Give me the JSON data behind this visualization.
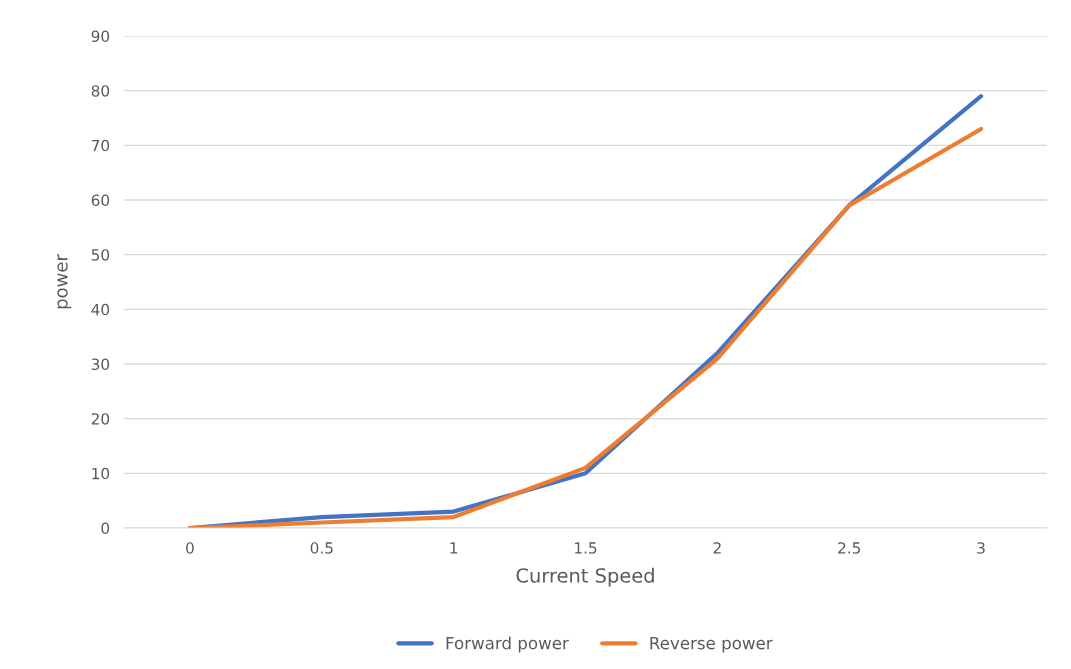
{
  "chart_data": {
    "type": "line",
    "xlabel": "Current Speed",
    "ylabel": "power",
    "categories": [
      "0",
      "0.5",
      "1",
      "1.5",
      "2",
      "2.5",
      "3"
    ],
    "series": [
      {
        "name": "Forward power",
        "color": "#4472c4",
        "values": [
          0,
          2,
          3,
          10,
          32,
          59,
          79
        ]
      },
      {
        "name": "Reverse power",
        "color": "#ed7d31",
        "values": [
          0,
          1,
          2,
          11,
          31,
          59,
          73
        ]
      }
    ],
    "ylim": [
      0,
      90
    ],
    "yticks": [
      0,
      10,
      20,
      30,
      40,
      50,
      60,
      70,
      80,
      90
    ],
    "grid": "y",
    "legend": "bottom",
    "marker": "none",
    "line_style": "solid"
  }
}
